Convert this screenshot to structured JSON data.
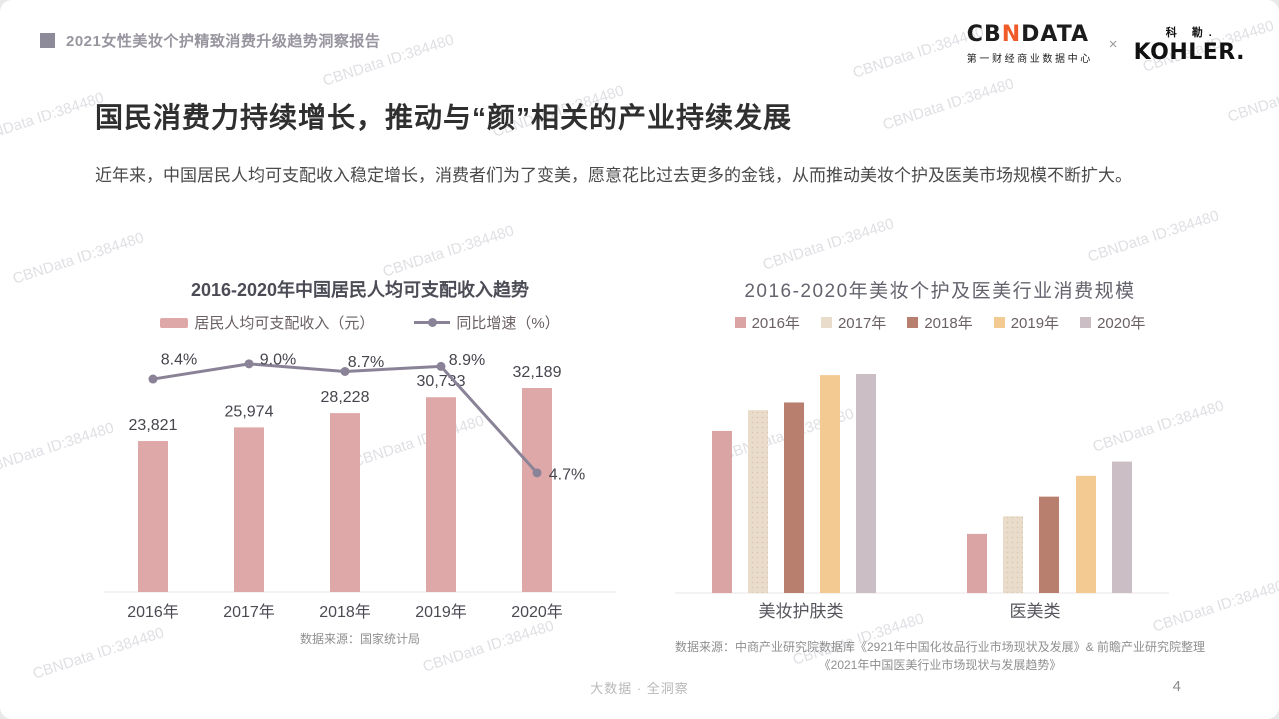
{
  "watermark": "CBNData ID:384480",
  "header": {
    "report_title": "2021女性美妆个护精致消费升级趋势洞察报告",
    "cbndata": {
      "part1": "CB",
      "part2": "N",
      "part3": "DATA",
      "subtitle": "第一财经商业数据中心"
    },
    "separator": "×",
    "kohler": {
      "cn": "科 勒.",
      "en": "KOHLER."
    }
  },
  "content": {
    "title": "国民消费力持续增长，推动与“颜”相关的产业持续发展",
    "intro": "近年来，中国居民人均可支配收入稳定增长，消费者们为了变美，愿意花比过去更多的金钱，从而推动美妆个护及医美市场规模不断扩大。"
  },
  "chart_data": [
    {
      "type": "bar",
      "title": "2016-2020年中国居民人均可支配收入趋势",
      "categories": [
        "2016年",
        "2017年",
        "2018年",
        "2019年",
        "2020年"
      ],
      "series": [
        {
          "name": "居民人均可支配收入（元）",
          "type": "bar",
          "values": [
            23821,
            25974,
            28228,
            30733,
            32189
          ],
          "labels": [
            "23,821",
            "25,974",
            "28,228",
            "30,733",
            "32,189"
          ],
          "color": "#dfa8a8"
        },
        {
          "name": "同比增速（%）",
          "type": "line",
          "values": [
            8.4,
            9.0,
            8.7,
            8.9,
            4.7
          ],
          "labels": [
            "8.4%",
            "9.0%",
            "8.7%",
            "8.9%",
            "4.7%"
          ],
          "color": "#8a8397"
        }
      ],
      "ylim": [
        0,
        32189
      ],
      "grid": false,
      "legend_position": "top",
      "source": "数据来源：国家统计局"
    },
    {
      "type": "bar",
      "title": "2016-2020年美妆个护及医美行业消费规模",
      "categories": [
        "美妆护肤类",
        "医美类"
      ],
      "series": [
        {
          "name": "2016年",
          "values": [
            74,
            27
          ],
          "color": "#daa3a4"
        },
        {
          "name": "2017年",
          "values": [
            83.5,
            35
          ],
          "color": "#e9dcca"
        },
        {
          "name": "2018年",
          "values": [
            87,
            44
          ],
          "color": "#b87f6e"
        },
        {
          "name": "2019年",
          "values": [
            99.5,
            53.5
          ],
          "color": "#f4ca93"
        },
        {
          "name": "2020年",
          "values": [
            100,
            60
          ],
          "color": "#cbbec4"
        }
      ],
      "values_note": "柱高按像素估算的相对规模（图中未标注数值，2020年美妆护肤类=100）",
      "ylim": [
        0,
        100
      ],
      "grid": false,
      "legend_position": "top",
      "source": "数据来源：中商产业研究院数据库《2921年中国化妆品行业市场现状及发展》& 前瞻产业研究院整理《2021年中国医美行业市场现状与发展趋势》"
    }
  ],
  "footer": {
    "slogan": "大数据 · 全洞察",
    "page_number": "4"
  }
}
